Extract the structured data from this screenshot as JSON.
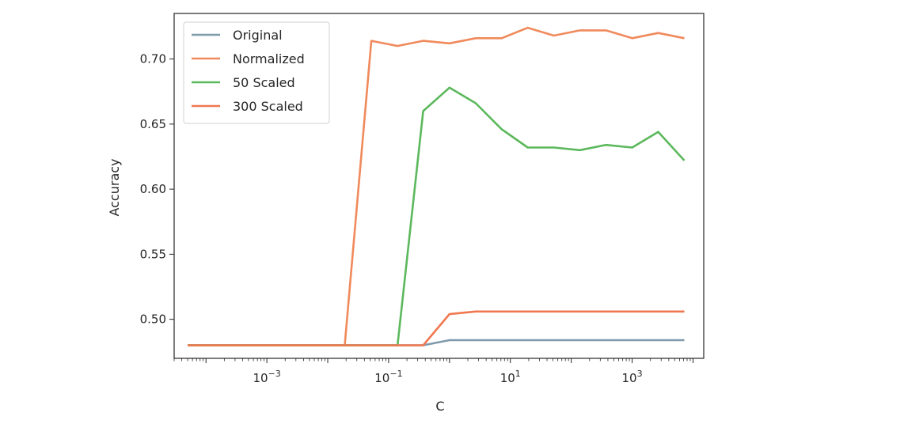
{
  "chart_data": {
    "type": "line",
    "title": "",
    "xlabel": "C",
    "ylabel": "Accuracy",
    "xscale": "log",
    "xlim": [
      3e-05,
      15000
    ],
    "ylim": [
      0.47,
      0.735
    ],
    "xticks": [
      {
        "value": 0.001,
        "base": "10",
        "exp": "−3"
      },
      {
        "value": 0.1,
        "base": "10",
        "exp": "−1"
      },
      {
        "value": 10,
        "base": "10",
        "exp": "1"
      },
      {
        "value": 1000,
        "base": "10",
        "exp": "3"
      }
    ],
    "yticks": [
      {
        "value": 0.5,
        "label": "0.50"
      },
      {
        "value": 0.55,
        "label": "0.55"
      },
      {
        "value": 0.6,
        "label": "0.60"
      },
      {
        "value": 0.65,
        "label": "0.65"
      },
      {
        "value": 0.7,
        "label": "0.70"
      }
    ],
    "grid": false,
    "legend_position": "top-left",
    "x": [
      5e-05,
      0.00014,
      0.00037,
      0.001,
      0.0027,
      0.0072,
      0.019,
      0.052,
      0.14,
      0.37,
      1.0,
      2.7,
      7.2,
      19.3,
      51.8,
      139,
      373,
      1000,
      2683,
      7197
    ],
    "series": [
      {
        "name": "Original",
        "color": "#7f9aaa",
        "values": [
          0.48,
          0.48,
          0.48,
          0.48,
          0.48,
          0.48,
          0.48,
          0.48,
          0.48,
          0.48,
          0.484,
          0.484,
          0.484,
          0.484,
          0.484,
          0.484,
          0.484,
          0.484,
          0.484,
          0.484
        ]
      },
      {
        "name": "Normalized",
        "color": "#f08a5c",
        "values": [
          0.48,
          0.48,
          0.48,
          0.48,
          0.48,
          0.48,
          0.48,
          0.714,
          0.71,
          0.714,
          0.712,
          0.716,
          0.716,
          0.724,
          0.718,
          0.722,
          0.722,
          0.716,
          0.72,
          0.716
        ]
      },
      {
        "name": "50 Scaled",
        "color": "#5cb85c",
        "values": [
          0.48,
          0.48,
          0.48,
          0.48,
          0.48,
          0.48,
          0.48,
          0.48,
          0.48,
          0.66,
          0.678,
          0.666,
          0.646,
          0.632,
          0.632,
          0.63,
          0.634,
          0.632,
          0.644,
          0.622
        ]
      },
      {
        "name": "300 Scaled",
        "color": "#f07850",
        "values": [
          0.48,
          0.48,
          0.48,
          0.48,
          0.48,
          0.48,
          0.48,
          0.48,
          0.48,
          0.48,
          0.504,
          0.506,
          0.506,
          0.506,
          0.506,
          0.506,
          0.506,
          0.506,
          0.506,
          0.506
        ]
      }
    ]
  }
}
